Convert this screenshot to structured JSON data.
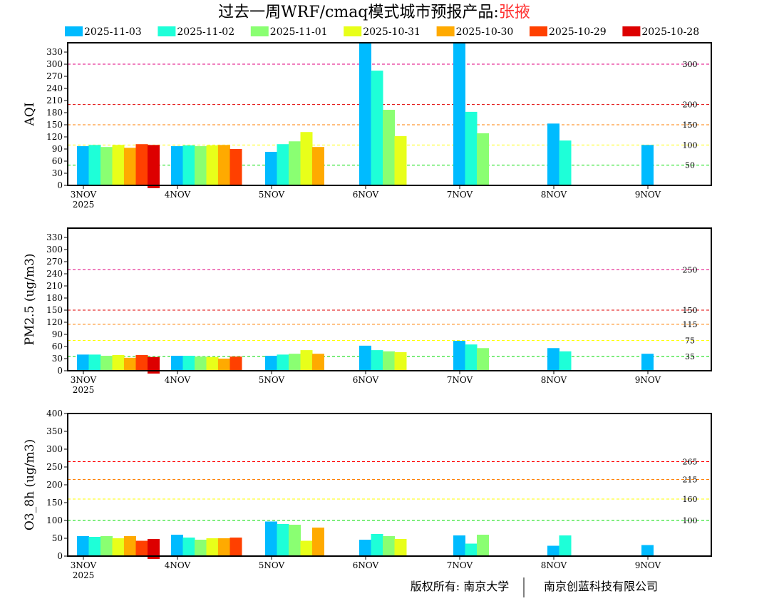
{
  "title": {
    "main": "过去一周WRF/cmaq模式城市预报产品:",
    "city": "张掖",
    "city_color": "#ff3030"
  },
  "footer": {
    "left": "版权所有: 南京大学",
    "right": "南京创蓝科技有限公司"
  },
  "legend": [
    {
      "label": "2025-11-03",
      "color": "#00bbff"
    },
    {
      "label": "2025-11-02",
      "color": "#1effd8"
    },
    {
      "label": "2025-11-01",
      "color": "#8aff72"
    },
    {
      "label": "2025-10-31",
      "color": "#e8ff1a"
    },
    {
      "label": "2025-10-30",
      "color": "#ffaa00"
    },
    {
      "label": "2025-10-29",
      "color": "#ff4000"
    },
    {
      "label": "2025-10-28",
      "color": "#dd0000"
    }
  ],
  "chart_data": [
    {
      "type": "bar",
      "ylabel": "AQI",
      "categories": [
        "3NOV",
        "4NOV",
        "5NOV",
        "6NOV",
        "7NOV",
        "8NOV",
        "9NOV"
      ],
      "year_label": "2025",
      "ylim": [
        0,
        353
      ],
      "yticks": [
        0,
        30,
        60,
        90,
        120,
        150,
        180,
        210,
        240,
        270,
        300,
        330
      ],
      "thresholds": [
        {
          "value": 300,
          "label": "300",
          "color": "#e0007f"
        },
        {
          "value": 200,
          "label": "200",
          "color": "#e00000"
        },
        {
          "value": 150,
          "label": "150",
          "color": "#ff7f00"
        },
        {
          "value": 100,
          "label": "100",
          "color": "#ffff00"
        },
        {
          "value": 50,
          "label": "50",
          "color": "#00dd00"
        }
      ],
      "series": [
        {
          "name": "2025-11-03",
          "values": [
            97,
            97,
            83,
            360,
            360,
            153,
            100
          ]
        },
        {
          "name": "2025-11-02",
          "values": [
            100,
            99,
            102,
            284,
            182,
            111,
            null
          ]
        },
        {
          "name": "2025-11-01",
          "values": [
            95,
            97,
            109,
            187,
            129,
            null,
            null
          ]
        },
        {
          "name": "2025-10-31",
          "values": [
            100,
            99,
            132,
            122,
            null,
            null,
            null
          ]
        },
        {
          "name": "2025-10-30",
          "values": [
            93,
            100,
            95,
            null,
            null,
            null,
            null
          ]
        },
        {
          "name": "2025-10-29",
          "values": [
            102,
            90,
            null,
            null,
            null,
            null,
            null
          ]
        },
        {
          "name": "2025-10-28",
          "values": [
            100,
            null,
            null,
            null,
            null,
            null,
            null
          ]
        }
      ]
    },
    {
      "type": "bar",
      "ylabel": "PM2.5 (ug/m3)",
      "categories": [
        "3NOV",
        "4NOV",
        "5NOV",
        "6NOV",
        "7NOV",
        "8NOV",
        "9NOV"
      ],
      "year_label": "2025",
      "ylim": [
        0,
        353
      ],
      "yticks": [
        0,
        30,
        60,
        90,
        120,
        150,
        180,
        210,
        240,
        270,
        300,
        330
      ],
      "thresholds": [
        {
          "value": 250,
          "label": "250",
          "color": "#e0007f"
        },
        {
          "value": 150,
          "label": "150",
          "color": "#e00000"
        },
        {
          "value": 115,
          "label": "115",
          "color": "#ff7f00"
        },
        {
          "value": 75,
          "label": "75",
          "color": "#ffff00"
        },
        {
          "value": 35,
          "label": "35",
          "color": "#00dd00"
        }
      ],
      "series": [
        {
          "name": "2025-11-03",
          "values": [
            40,
            37,
            37,
            62,
            74,
            56,
            42
          ]
        },
        {
          "name": "2025-11-02",
          "values": [
            40,
            37,
            40,
            51,
            65,
            48,
            null
          ]
        },
        {
          "name": "2025-11-01",
          "values": [
            37,
            35,
            42,
            48,
            56,
            null,
            null
          ]
        },
        {
          "name": "2025-10-31",
          "values": [
            39,
            34,
            51,
            46,
            null,
            null,
            null
          ]
        },
        {
          "name": "2025-10-30",
          "values": [
            32,
            30,
            42,
            null,
            null,
            null,
            null
          ]
        },
        {
          "name": "2025-10-29",
          "values": [
            39,
            35,
            null,
            null,
            null,
            null,
            null
          ]
        },
        {
          "name": "2025-10-28",
          "values": [
            34,
            null,
            null,
            null,
            null,
            null,
            null
          ]
        }
      ]
    },
    {
      "type": "bar",
      "ylabel": "O3_8h (ug/m3)",
      "categories": [
        "3NOV",
        "4NOV",
        "5NOV",
        "6NOV",
        "7NOV",
        "8NOV",
        "9NOV"
      ],
      "year_label": "2025",
      "ylim": [
        0,
        400
      ],
      "yticks": [
        0,
        50,
        100,
        150,
        200,
        250,
        300,
        350,
        400
      ],
      "thresholds": [
        {
          "value": 265,
          "label": "265",
          "color": "#ff0000"
        },
        {
          "value": 215,
          "label": "215",
          "color": "#ff7f00"
        },
        {
          "value": 160,
          "label": "160",
          "color": "#ffff00"
        },
        {
          "value": 100,
          "label": "100",
          "color": "#00dd00"
        }
      ],
      "series": [
        {
          "name": "2025-11-03",
          "values": [
            56,
            60,
            97,
            46,
            58,
            29,
            31
          ]
        },
        {
          "name": "2025-11-02",
          "values": [
            54,
            52,
            90,
            62,
            35,
            58,
            null
          ]
        },
        {
          "name": "2025-11-01",
          "values": [
            56,
            46,
            88,
            56,
            60,
            null,
            null
          ]
        },
        {
          "name": "2025-10-31",
          "values": [
            50,
            50,
            43,
            48,
            null,
            null,
            null
          ]
        },
        {
          "name": "2025-10-30",
          "values": [
            56,
            50,
            80,
            null,
            null,
            null,
            null
          ]
        },
        {
          "name": "2025-10-29",
          "values": [
            43,
            52,
            null,
            null,
            null,
            null,
            null
          ]
        },
        {
          "name": "2025-10-28",
          "values": [
            48,
            null,
            null,
            null,
            null,
            null,
            null
          ]
        }
      ]
    }
  ]
}
